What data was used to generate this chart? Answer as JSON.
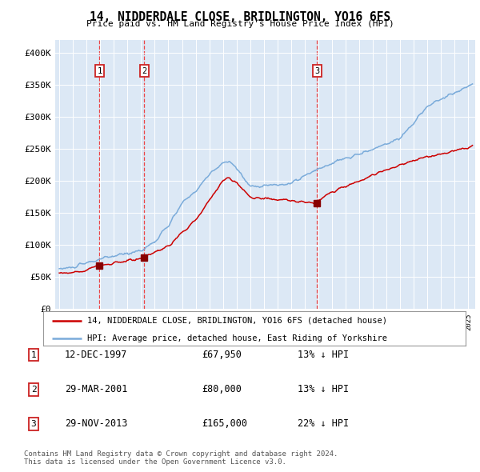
{
  "title": "14, NIDDERDALE CLOSE, BRIDLINGTON, YO16 6FS",
  "subtitle": "Price paid vs. HM Land Registry's House Price Index (HPI)",
  "transactions": [
    {
      "num": 1,
      "date_str": "12-DEC-1997",
      "date_x": 1997.95,
      "price": 67950
    },
    {
      "num": 2,
      "date_str": "29-MAR-2001",
      "date_x": 2001.24,
      "price": 80000
    },
    {
      "num": 3,
      "date_str": "29-NOV-2013",
      "date_x": 2013.91,
      "price": 165000
    }
  ],
  "legend_line1": "14, NIDDERDALE CLOSE, BRIDLINGTON, YO16 6FS (detached house)",
  "legend_line2": "HPI: Average price, detached house, East Riding of Yorkshire",
  "table_rows": [
    [
      "1",
      "12-DEC-1997",
      "£67,950",
      "13% ↓ HPI"
    ],
    [
      "2",
      "29-MAR-2001",
      "£80,000",
      "13% ↓ HPI"
    ],
    [
      "3",
      "29-NOV-2013",
      "£165,000",
      "22% ↓ HPI"
    ]
  ],
  "footnote": "Contains HM Land Registry data © Crown copyright and database right 2024.\nThis data is licensed under the Open Government Licence v3.0.",
  "hpi_color": "#7aabda",
  "price_color": "#cc0000",
  "vline_color": "#ee3333",
  "marker_color": "#880000",
  "background_color": "#ffffff",
  "plot_bg_color": "#dce8f5",
  "ylim": [
    0,
    420000
  ],
  "yticks": [
    0,
    50000,
    100000,
    150000,
    200000,
    250000,
    300000,
    350000,
    400000
  ],
  "xlim_start": 1994.7,
  "xlim_end": 2025.5
}
